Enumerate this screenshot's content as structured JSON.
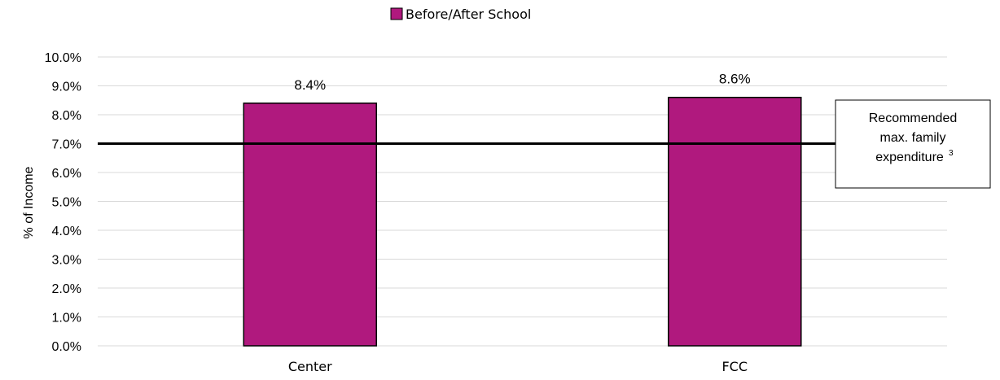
{
  "chart_data": {
    "type": "bar",
    "categories": [
      "Center",
      "FCC"
    ],
    "series": [
      {
        "name": "Before/After School",
        "values": [
          8.4,
          8.6
        ],
        "data_labels": [
          "8.4%",
          "8.6%"
        ],
        "color": "#B0197E"
      }
    ],
    "ylabel": "% of Income",
    "xlabel": "",
    "ylim": [
      0,
      10
    ],
    "yticks": [
      0,
      1,
      2,
      3,
      4,
      5,
      6,
      7,
      8,
      9,
      10
    ],
    "ytick_labels": [
      "0.0%",
      "1.0%",
      "2.0%",
      "3.0%",
      "4.0%",
      "5.0%",
      "6.0%",
      "7.0%",
      "8.0%",
      "9.0%",
      "10.0%"
    ],
    "grid": true,
    "legend_position": "top-center",
    "reference_line": {
      "value": 7.0,
      "label_lines": [
        "Recommended",
        "max. family",
        "expenditure"
      ],
      "footnote": "3"
    }
  },
  "colors": {
    "bar_fill": "#B0197E",
    "bar_stroke": "#000000",
    "grid": "#D9D9D9",
    "reference_line": "#000000"
  }
}
